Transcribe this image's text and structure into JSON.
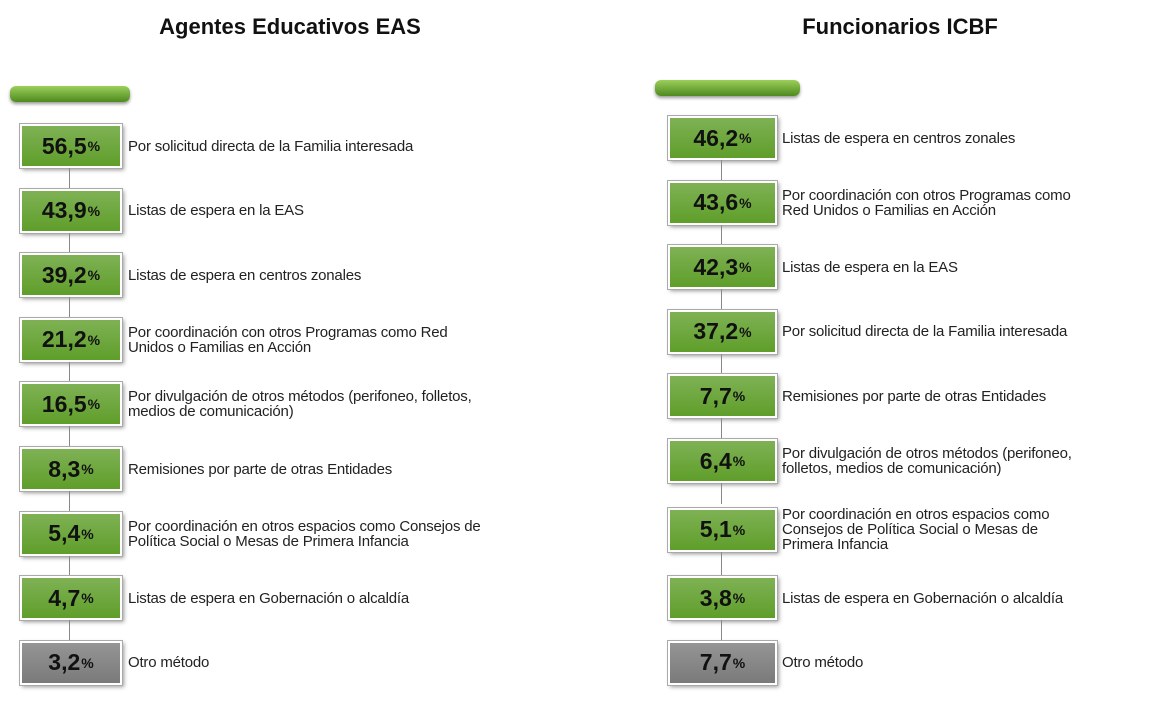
{
  "panels": [
    {
      "title": "Agentes Educativos EAS",
      "items": [
        {
          "value": "56,5",
          "unit": "%",
          "lines": [
            "Por solicitud directa de la Familia interesada"
          ],
          "color": "#5f9e2a"
        },
        {
          "value": "43,9",
          "unit": "%",
          "lines": [
            "Listas de espera en la EAS"
          ],
          "color": "#5f9e2a"
        },
        {
          "value": "39,2",
          "unit": "%",
          "lines": [
            "Listas de espera en centros zonales"
          ],
          "color": "#5f9e2a"
        },
        {
          "value": "21,2",
          "unit": "%",
          "lines": [
            "Por coordinación  con otros  Programas como Red",
            "Unidos o Familias en Acción"
          ],
          "color": "#5f9e2a"
        },
        {
          "value": "16,5",
          "unit": "%",
          "lines": [
            "Por divulgación de otros métodos (perifoneo, folletos,",
            "medios de comunicación)"
          ],
          "color": "#5f9e2a"
        },
        {
          "value": "8,3",
          "unit": "%",
          "lines": [
            "Remisiones por parte de otras Entidades"
          ],
          "color": "#5f9e2a"
        },
        {
          "value": "5,4",
          "unit": "%",
          "lines": [
            "Por coordinación  en otros espacios como Consejos de",
            "Política Social o Mesas de Primera Infancia"
          ],
          "color": "#5f9e2a"
        },
        {
          "value": "4,7",
          "unit": "%",
          "lines": [
            "Listas de espera en Gobernación  o alcaldía"
          ],
          "color": "#5f9e2a"
        },
        {
          "value": "3,2",
          "unit": "%",
          "lines": [
            "Otro método"
          ],
          "color": "#7a7a7a"
        }
      ]
    },
    {
      "title": "Funcionarios ICBF",
      "items": [
        {
          "value": "46,2",
          "unit": "%",
          "lines": [
            "Listas de espera en centros zonales"
          ],
          "color": "#5f9e2a"
        },
        {
          "value": "43,6",
          "unit": "%",
          "lines": [
            "Por coordinación con otros Programas como",
            "Red Unidos o Familias en Acción"
          ],
          "color": "#5f9e2a"
        },
        {
          "value": "42,3",
          "unit": "%",
          "lines": [
            "Listas de espera en la EAS"
          ],
          "color": "#5f9e2a"
        },
        {
          "value": "37,2",
          "unit": "%",
          "lines": [
            "Por solicitud directa de la Familia interesada"
          ],
          "color": "#5f9e2a"
        },
        {
          "value": "7,7",
          "unit": "%",
          "lines": [
            "Remisiones por parte de otras Entidades"
          ],
          "color": "#5f9e2a"
        },
        {
          "value": "6,4",
          "unit": "%",
          "lines": [
            "Por divulgación de otros métodos (perifoneo,",
            "folletos, medios de comunicación)"
          ],
          "color": "#5f9e2a"
        },
        {
          "value": "5,1",
          "unit": "%",
          "lines": [
            "Por coordinación en otros espacios como",
            "Consejos de Política Social  o Mesas de",
            "Primera Infancia"
          ],
          "color": "#5f9e2a"
        },
        {
          "value": "3,8",
          "unit": "%",
          "lines": [
            "Listas de espera en Gobernación o alcaldía"
          ],
          "color": "#5f9e2a"
        },
        {
          "value": "7,7",
          "unit": "%",
          "lines": [
            "Otro método"
          ],
          "color": "#7a7a7a"
        }
      ]
    }
  ]
}
